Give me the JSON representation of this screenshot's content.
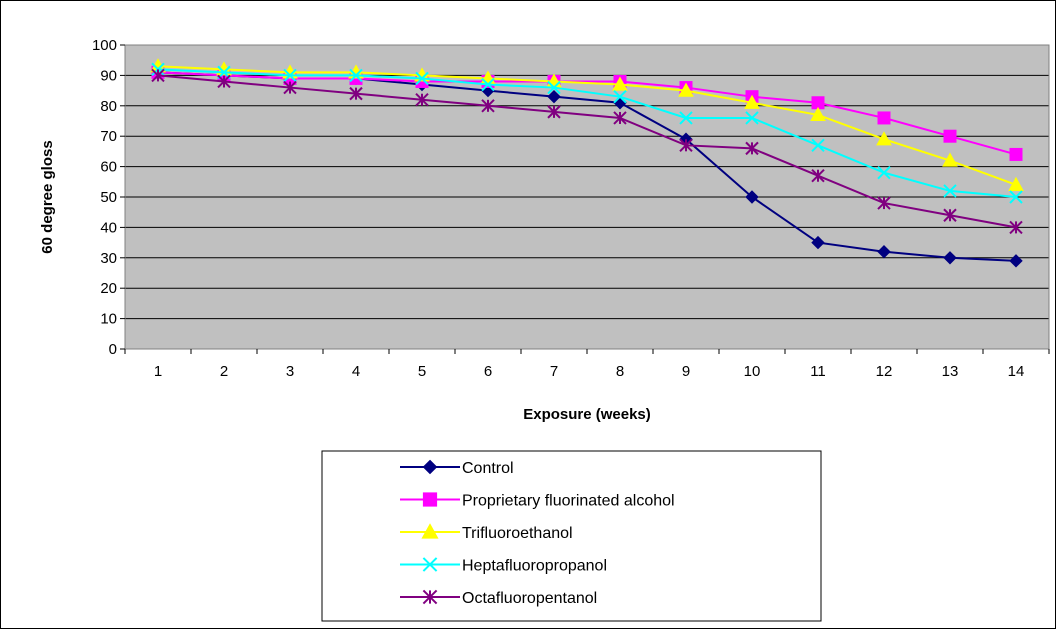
{
  "chart_data": {
    "type": "line",
    "title": "",
    "xlabel": "Exposure (weeks)",
    "ylabel": "60 degree gloss",
    "categories": [
      "1",
      "2",
      "3",
      "4",
      "5",
      "6",
      "7",
      "8",
      "9",
      "10",
      "11",
      "12",
      "13",
      "14"
    ],
    "ylim": [
      0,
      100
    ],
    "ytick_step": 10,
    "grid": true,
    "plot_background": "#c0c0c0",
    "legend_position": "bottom",
    "series": [
      {
        "name": "Control",
        "color": "#000080",
        "marker": "diamond",
        "values": [
          91,
          90,
          89,
          89,
          87,
          85,
          83,
          81,
          69,
          50,
          35,
          32,
          30,
          29
        ]
      },
      {
        "name": "Proprietary fluorinated alcohol",
        "color": "#ff00ff",
        "marker": "square",
        "values": [
          91,
          90,
          89,
          89,
          88,
          88,
          88,
          88,
          86,
          83,
          81,
          76,
          70,
          64
        ]
      },
      {
        "name": "Trifluoroethanol",
        "color": "#ffff00",
        "marker": "triangle",
        "values": [
          93,
          92,
          91,
          91,
          90,
          89,
          88,
          87,
          85,
          81,
          77,
          69,
          62,
          54
        ]
      },
      {
        "name": "Heptafluoropropanol",
        "color": "#00ffff",
        "marker": "x",
        "values": [
          92,
          91,
          90,
          90,
          89,
          87,
          86,
          83,
          76,
          76,
          67,
          58,
          52,
          50
        ]
      },
      {
        "name": "Octafluoropentanol",
        "color": "#800080",
        "marker": "star",
        "values": [
          90,
          88,
          86,
          84,
          82,
          80,
          78,
          76,
          67,
          66,
          57,
          48,
          44,
          40
        ]
      }
    ]
  }
}
